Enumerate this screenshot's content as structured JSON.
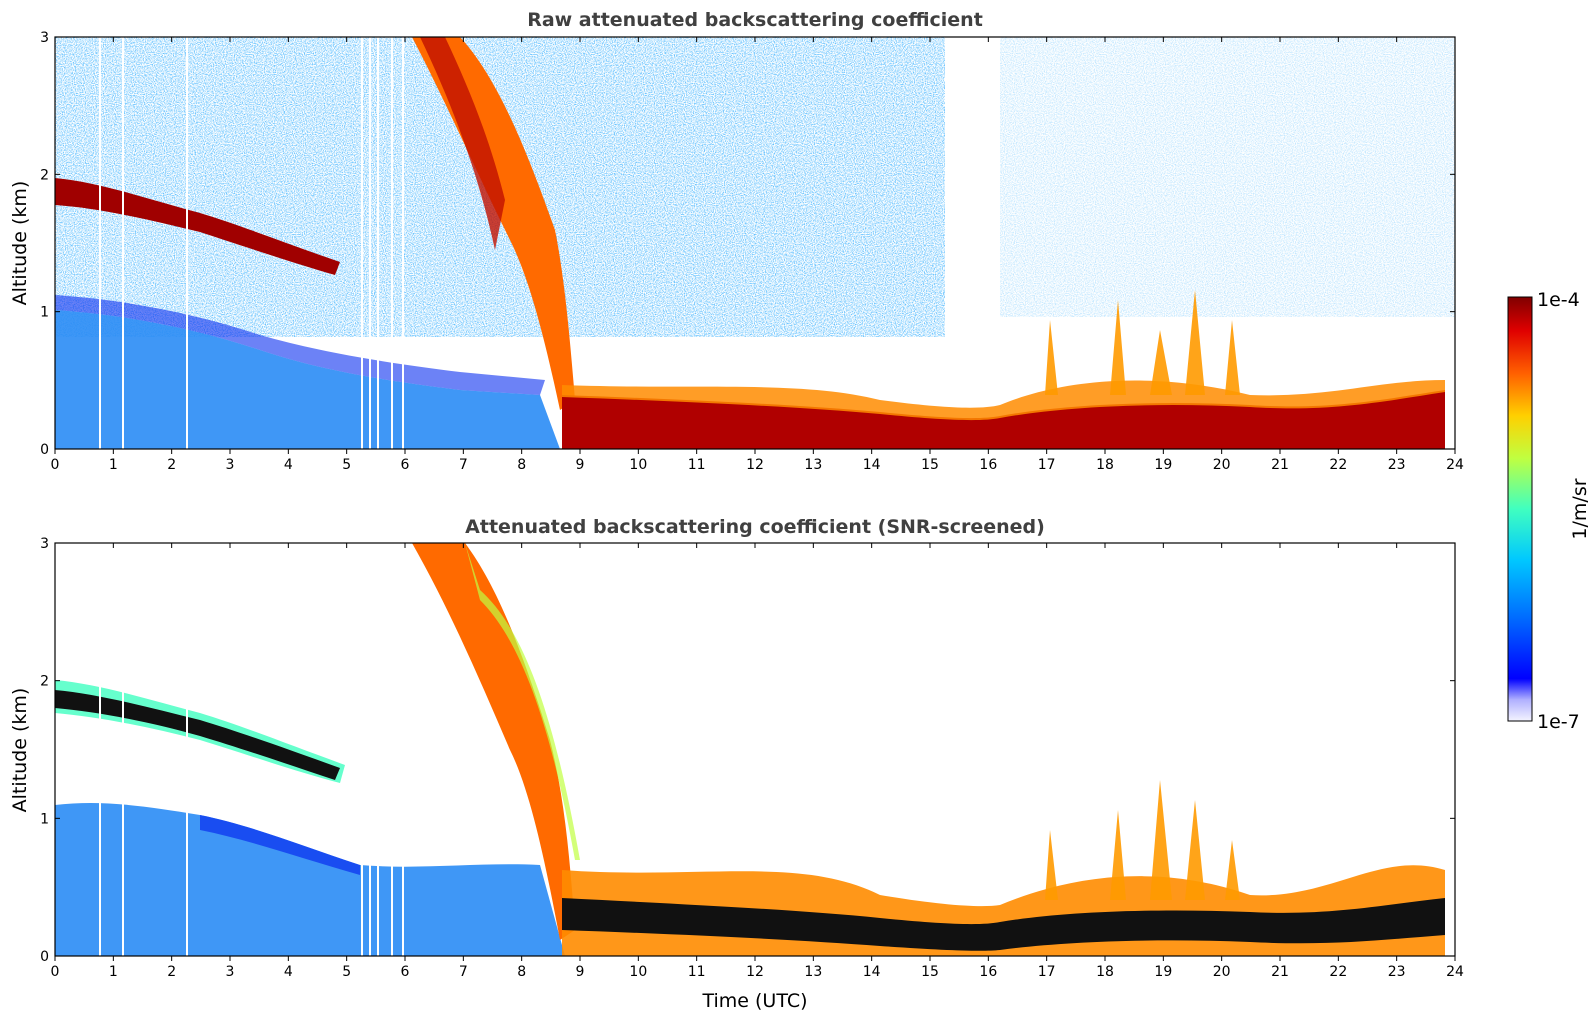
{
  "chart_data": [
    {
      "type": "heatmap",
      "title": "Raw attenuated backscattering coefficient",
      "xlabel": "",
      "ylabel": "Altitude (km)",
      "xlim": [
        0,
        24
      ],
      "ylim": [
        0,
        3
      ],
      "xticks": [
        "0",
        "1",
        "2",
        "3",
        "4",
        "5",
        "6",
        "7",
        "8",
        "9",
        "10",
        "11",
        "12",
        "13",
        "14",
        "15",
        "16",
        "17",
        "18",
        "19",
        "20",
        "21",
        "22",
        "23",
        "24"
      ],
      "yticks": [
        "0",
        "1",
        "2",
        "3"
      ],
      "features": [
        {
          "name": "elevated aerosol layer",
          "time_start": 0,
          "time_end": 4.8,
          "altitude_start_km": 1.8,
          "altitude_end_km": 1.35
        },
        {
          "name": "descending precipitation band",
          "time_start": 6.2,
          "time_end": 8.7,
          "altitude_start_km": 3.0,
          "altitude_end_km": 0.3
        },
        {
          "name": "low cloud layer",
          "time_start": 8.8,
          "time_end": 23.8,
          "altitude_km": 0.2
        }
      ],
      "grid": false
    },
    {
      "type": "heatmap",
      "title": "Attenuated backscattering coefficient (SNR-screened)",
      "xlabel": "Time (UTC)",
      "ylabel": "Altitude (km)",
      "xlim": [
        0,
        24
      ],
      "ylim": [
        0,
        3
      ],
      "xticks": [
        "0",
        "1",
        "2",
        "3",
        "4",
        "5",
        "6",
        "7",
        "8",
        "9",
        "10",
        "11",
        "12",
        "13",
        "14",
        "15",
        "16",
        "17",
        "18",
        "19",
        "20",
        "21",
        "22",
        "23",
        "24"
      ],
      "yticks": [
        "0",
        "1",
        "2",
        "3"
      ],
      "grid": false
    }
  ],
  "colorbar": {
    "max_label": "1e-4",
    "min_label": "1e-7",
    "unit_label": "1/m/sr",
    "colors": [
      "#eeeeff",
      "#aaaaff",
      "#0000ff",
      "#0070ff",
      "#00c8ff",
      "#40ffc0",
      "#c0ff40",
      "#ffd000",
      "#ff6000",
      "#e00000",
      "#800000"
    ]
  }
}
